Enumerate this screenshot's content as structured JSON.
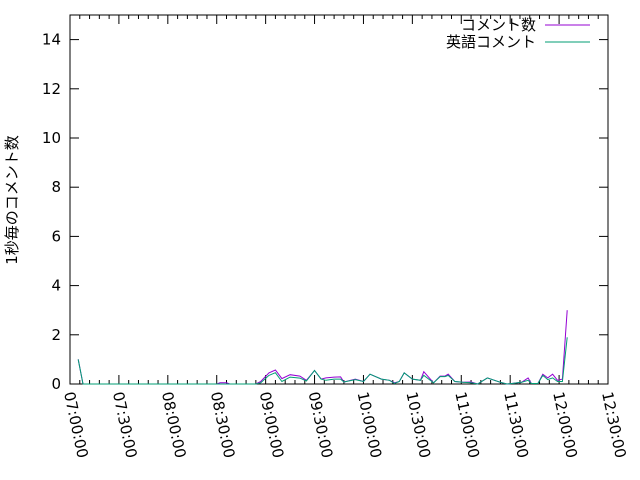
{
  "chart_data": {
    "type": "line",
    "title": "",
    "xlabel": "",
    "ylabel": "1秒毎のコメント数",
    "xlim": [
      "07:00:00",
      "12:30:00"
    ],
    "ylim": [
      0,
      15
    ],
    "grid": false,
    "legend_position": "top-right",
    "x_tick_labels": [
      "07:00:00",
      "07:30:00",
      "08:00:00",
      "08:30:00",
      "09:00:00",
      "09:30:00",
      "10:00:00",
      "10:30:00",
      "11:00:00",
      "11:30:00",
      "12:00:00",
      "12:30:00"
    ],
    "y_tick_labels": [
      "0",
      "2",
      "4",
      "6",
      "8",
      "10",
      "12",
      "14"
    ],
    "x": [
      "07:05",
      "07:08",
      "08:30",
      "08:32",
      "08:36",
      "08:38",
      "08:54",
      "08:57",
      "09:02",
      "09:06",
      "09:10",
      "09:15",
      "09:21",
      "09:25",
      "09:30",
      "09:34",
      "09:37",
      "09:42",
      "09:46",
      "09:48",
      "09:55",
      "10:00",
      "10:04",
      "10:11",
      "10:16",
      "10:19",
      "10:22",
      "10:25",
      "10:30",
      "10:35",
      "10:37",
      "10:43",
      "10:47",
      "10:50",
      "10:52",
      "10:56",
      "11:01",
      "11:06",
      "11:10",
      "11:16",
      "11:24",
      "11:28",
      "11:31",
      "11:37",
      "11:41",
      "11:43",
      "11:47",
      "11:50",
      "11:53",
      "11:56",
      "11:59",
      "12:02",
      "12:05"
    ],
    "series": [
      {
        "name": "コメント数",
        "color": "#9400d3",
        "values": [
          1,
          0,
          0,
          0.05,
          0.05,
          0,
          0,
          0.1,
          0.45,
          0.57,
          0.22,
          0.38,
          0.32,
          0.15,
          0.55,
          0.2,
          0.25,
          0.28,
          0.29,
          0.08,
          0.2,
          0.1,
          0.4,
          0.2,
          0.15,
          0.05,
          0.1,
          0.45,
          0.2,
          0.15,
          0.5,
          0.05,
          0.32,
          0.32,
          0.4,
          0.1,
          0.07,
          0.08,
          0,
          0.25,
          0.07,
          0,
          0.02,
          0.07,
          0.25,
          0.02,
          0.02,
          0.4,
          0.25,
          0.4,
          0.15,
          0.2,
          3
        ]
      },
      {
        "name": "英語コメント",
        "color": "#009e73",
        "values": [
          1,
          0,
          0,
          0,
          0,
          0,
          0,
          0.05,
          0.35,
          0.46,
          0.1,
          0.28,
          0.24,
          0.12,
          0.55,
          0.2,
          0.15,
          0.2,
          0.2,
          0.08,
          0.18,
          0.1,
          0.4,
          0.2,
          0.15,
          0.02,
          0.1,
          0.45,
          0.2,
          0.15,
          0.35,
          0.05,
          0.3,
          0.3,
          0.35,
          0.1,
          0.07,
          0.05,
          0,
          0.25,
          0.07,
          0,
          0.02,
          0.07,
          0.15,
          0.02,
          0.02,
          0.35,
          0.18,
          0.25,
          0.1,
          0.1,
          1.9
        ]
      }
    ]
  }
}
